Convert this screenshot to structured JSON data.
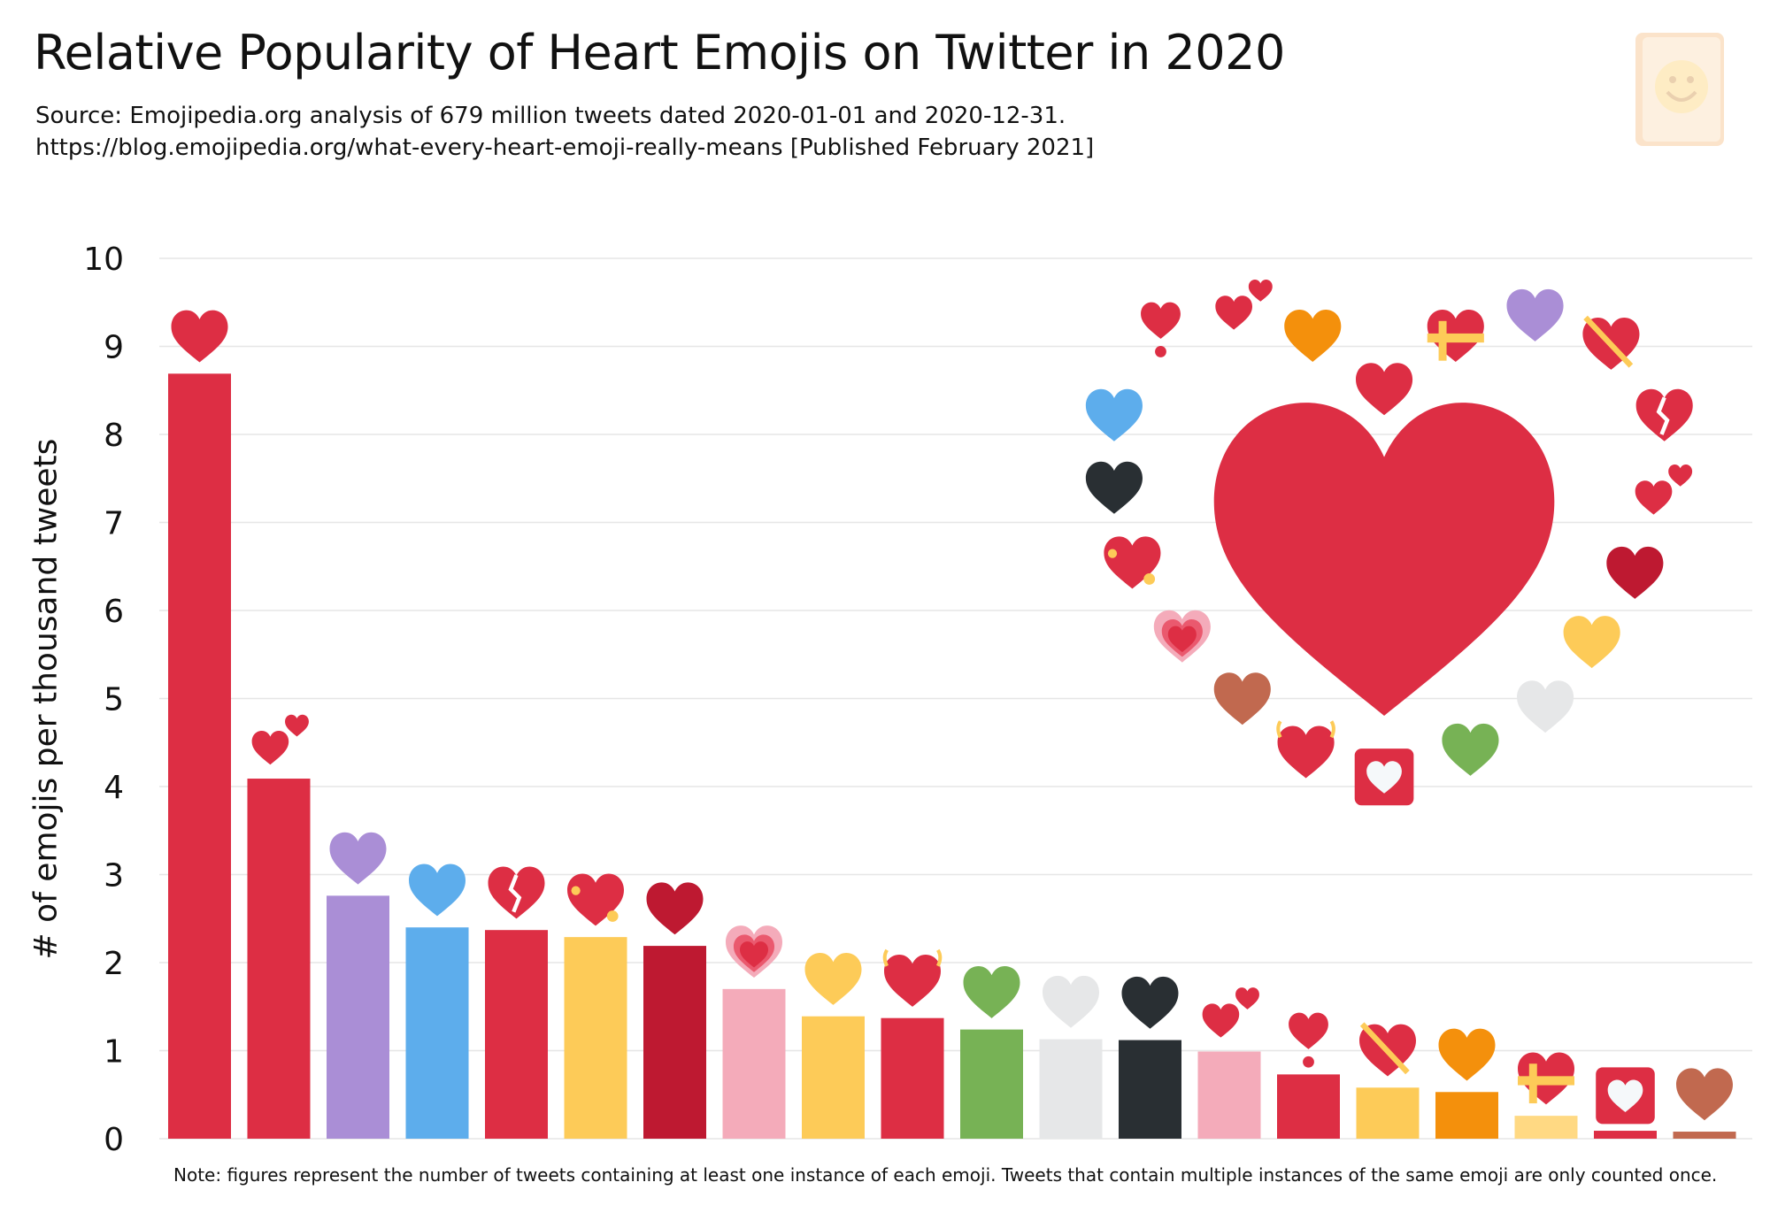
{
  "header": {
    "title": "Relative Popularity of Heart Emojis on Twitter in 2020",
    "source_line": "Source: Emojipedia.org analysis of 679 million tweets dated 2020-01-01 and 2020-12-31.",
    "url_line": "https://blog.emojipedia.org/what-every-heart-emoji-really-means [Published February 2021]",
    "logo_icon": "emojipedia-logo-icon"
  },
  "note": "Note: figures represent the number of tweets containing at least one instance of each emoji. Tweets that contain multiple instances of the same emoji are only counted once.",
  "chart_data": {
    "type": "bar",
    "title": "Relative Popularity of Heart Emojis on Twitter in 2020",
    "xlabel": "",
    "ylabel": "# of emojis per thousand tweets",
    "ylim": [
      0,
      10
    ],
    "yticks": [
      "0",
      "1",
      "2",
      "3",
      "4",
      "5",
      "6",
      "7",
      "8",
      "9",
      "10"
    ],
    "grid": true,
    "categories": [
      "red-heart",
      "two-hearts",
      "purple-heart",
      "blue-heart",
      "broken-heart",
      "sparkling-heart",
      "heart-suit",
      "growing-heart",
      "yellow-heart",
      "beating-heart",
      "green-heart",
      "white-heart",
      "black-heart",
      "revolving-hearts",
      "heart-exclamation",
      "heart-with-arrow",
      "orange-heart",
      "heart-with-ribbon",
      "heart-decoration",
      "brown-heart"
    ],
    "values": [
      8.69,
      4.09,
      2.76,
      2.4,
      2.37,
      2.29,
      2.19,
      1.7,
      1.39,
      1.37,
      1.24,
      1.13,
      1.12,
      0.99,
      0.73,
      0.58,
      0.53,
      0.26,
      0.09,
      0.08
    ],
    "bar_colors": [
      "#dd2e44",
      "#dd2e44",
      "#aa8ed6",
      "#5dadec",
      "#dd2e44",
      "#fdcb58",
      "#be1931",
      "#f4abba",
      "#fdcb58",
      "#dd2e44",
      "#77b255",
      "#e6e7e8",
      "#292f33",
      "#f4abba",
      "#dd2e44",
      "#fdcb58",
      "#f4900c",
      "#ffd983",
      "#dd2e44",
      "#c1694f"
    ],
    "icon_colors": [
      "#dd2e44",
      "#dd2e44",
      "#aa8ed6",
      "#5dadec",
      "#dd2e44",
      "#dd2e44",
      "#be1931",
      "#dd2e44",
      "#fdcb58",
      "#dd2e44",
      "#77b255",
      "#e6e7e8",
      "#292f33",
      "#dd2e44",
      "#dd2e44",
      "#dd2e44",
      "#f4900c",
      "#dd2e44",
      "#dd2e44",
      "#c1694f"
    ]
  }
}
